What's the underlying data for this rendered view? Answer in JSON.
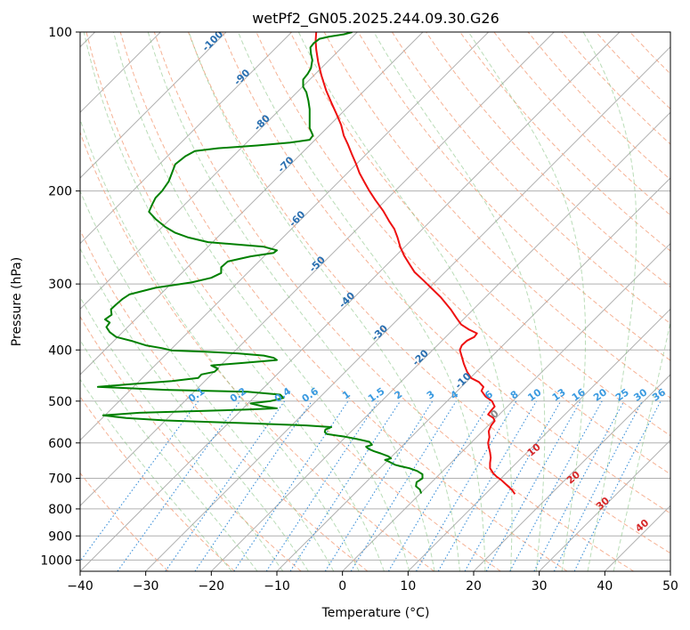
{
  "chart_data": {
    "type": "line",
    "title": "wetPf2_GN05.2025.244.09.30.G26",
    "xlabel": "Temperature (°C)",
    "ylabel": "Pressure (hPa)",
    "xlim": [
      -40,
      50
    ],
    "ylim": [
      1050,
      100
    ],
    "y_scale": "log",
    "grid": true,
    "x_ticks": [
      "−40",
      "−30",
      "−20",
      "−10",
      "0",
      "10",
      "20",
      "30",
      "40",
      "50"
    ],
    "x_tick_values": [
      -40,
      -30,
      -20,
      -10,
      0,
      10,
      20,
      30,
      40,
      50
    ],
    "y_ticks": [
      "100",
      "200",
      "300",
      "400",
      "500",
      "600",
      "700",
      "800",
      "900",
      "1000"
    ],
    "y_tick_values": [
      100,
      200,
      300,
      400,
      500,
      600,
      700,
      800,
      900,
      1000
    ],
    "isotherm_skew_labels": [
      "-100",
      "-90",
      "-80",
      "-70",
      "-60",
      "-50",
      "-40",
      "-30",
      "-20",
      "-10"
    ],
    "isotherm_skew_values": [
      -100,
      -90,
      -80,
      -70,
      -60,
      -50,
      -40,
      -30,
      -20,
      -10
    ],
    "isotherm_label_pressures": [
      105,
      123,
      150,
      180,
      228,
      278,
      325,
      375,
      418,
      462
    ],
    "mixing_ratio_labels": [
      "0.1",
      "0.2",
      "0.4",
      "0.6",
      "1",
      "1.5",
      "2",
      "3",
      "4",
      "6",
      "8",
      "10",
      "13",
      "16",
      "20",
      "25",
      "30",
      "36"
    ],
    "mixing_ratio_values": [
      0.1,
      0.2,
      0.4,
      0.6,
      1,
      1.5,
      2,
      3,
      4,
      6,
      8,
      10,
      13,
      16,
      20,
      25,
      30,
      36
    ],
    "dry_adiabat_labels": [
      "0",
      "10",
      "20",
      "30",
      "40"
    ],
    "dry_adiabat_label_positions": [
      [
        23.5,
        535
      ],
      [
        29.5,
        625
      ],
      [
        35.5,
        705
      ],
      [
        40.0,
        790
      ],
      [
        46.0,
        870
      ]
    ],
    "series": [
      {
        "name": "",
        "color": "#ee1111",
        "points": [
          [
            26.3,
            750
          ],
          [
            25.8,
            735
          ],
          [
            25,
            720
          ],
          [
            24.2,
            705
          ],
          [
            23.5,
            695
          ],
          [
            23,
            685
          ],
          [
            22.5,
            670
          ],
          [
            22.5,
            655
          ],
          [
            22.6,
            640
          ],
          [
            22.5,
            625
          ],
          [
            22.3,
            610
          ],
          [
            22.2,
            600
          ],
          [
            22.4,
            585
          ],
          [
            22.3,
            570
          ],
          [
            22.7,
            555
          ],
          [
            23.2,
            545
          ],
          [
            23.0,
            538
          ],
          [
            22.2,
            530
          ],
          [
            22.6,
            522
          ],
          [
            23.2,
            512
          ],
          [
            22.8,
            500
          ],
          [
            21.8,
            490
          ],
          [
            21.2,
            478
          ],
          [
            21.5,
            470
          ],
          [
            20.8,
            460
          ],
          [
            19.6,
            452
          ],
          [
            19,
            440
          ],
          [
            18.5,
            425
          ],
          [
            18.2,
            412
          ],
          [
            17.9,
            400
          ],
          [
            18.2,
            392
          ],
          [
            19.0,
            384
          ],
          [
            20.1,
            378
          ],
          [
            20.5,
            372
          ],
          [
            19.3,
            366
          ],
          [
            18.1,
            358
          ],
          [
            17.4,
            348
          ],
          [
            16.5,
            335
          ],
          [
            15,
            318
          ],
          [
            13.5,
            305
          ],
          [
            12.3,
            295
          ],
          [
            11,
            285
          ],
          [
            10.2,
            275
          ],
          [
            9.4,
            265
          ],
          [
            8.8,
            255
          ],
          [
            8.4,
            245
          ],
          [
            7.9,
            236
          ],
          [
            7.1,
            228
          ],
          [
            6.2,
            218
          ],
          [
            5.0,
            208
          ],
          [
            4.1,
            200
          ],
          [
            3.3,
            192
          ],
          [
            2.6,
            185
          ],
          [
            2.1,
            178
          ],
          [
            1.4,
            170
          ],
          [
            0.8,
            163
          ],
          [
            0.2,
            157
          ],
          [
            -0.2,
            150
          ],
          [
            -0.9,
            143
          ],
          [
            -1.7,
            136
          ],
          [
            -2.5,
            129
          ],
          [
            -3.2,
            121
          ],
          [
            -3.7,
            114
          ],
          [
            -4.0,
            108
          ],
          [
            -4.1,
            104
          ],
          [
            -4.0,
            100
          ]
        ]
      },
      {
        "name": "",
        "color": "#008000",
        "points": [
          [
            12,
            748
          ],
          [
            11.8,
            735
          ],
          [
            11.2,
            725
          ],
          [
            11.3,
            712
          ],
          [
            12.2,
            700
          ],
          [
            12.2,
            688
          ],
          [
            11.4,
            678
          ],
          [
            10.2,
            670
          ],
          [
            8.8,
            664
          ],
          [
            8.0,
            660
          ],
          [
            7.2,
            652
          ],
          [
            6.5,
            646
          ],
          [
            7.4,
            642
          ],
          [
            7.0,
            636
          ],
          [
            5.8,
            628
          ],
          [
            4.8,
            622
          ],
          [
            4.0,
            616
          ],
          [
            3.6,
            610
          ],
          [
            4.5,
            605
          ],
          [
            4.1,
            597
          ],
          [
            2.2,
            590
          ],
          [
            0.4,
            584
          ],
          [
            -2.4,
            577
          ],
          [
            -2.7,
            572
          ],
          [
            -2.6,
            566
          ],
          [
            -1.7,
            560
          ],
          [
            -5.5,
            556
          ],
          [
            -15.5,
            550
          ],
          [
            -27,
            544
          ],
          [
            -33,
            538
          ],
          [
            -36.5,
            532
          ],
          [
            -31,
            526
          ],
          [
            -15,
            519
          ],
          [
            -10,
            516
          ],
          [
            -12,
            512
          ],
          [
            -14,
            505
          ],
          [
            -11,
            500
          ],
          [
            -9,
            493
          ],
          [
            -9.5,
            486
          ],
          [
            -14.5,
            480
          ],
          [
            -27,
            476
          ],
          [
            -37.3,
            470
          ],
          [
            -33,
            465
          ],
          [
            -26,
            458
          ],
          [
            -22,
            452
          ],
          [
            -21.5,
            445
          ],
          [
            -19.5,
            440
          ],
          [
            -19,
            434
          ],
          [
            -20,
            428
          ],
          [
            -15,
            423
          ],
          [
            -10,
            418
          ],
          [
            -10.5,
            414
          ],
          [
            -12,
            410
          ],
          [
            -16,
            406
          ],
          [
            -21,
            403
          ],
          [
            -26,
            401
          ],
          [
            -27.5,
            397
          ],
          [
            -30,
            392
          ],
          [
            -32,
            385
          ],
          [
            -34.5,
            378
          ],
          [
            -35.5,
            370
          ],
          [
            -36,
            362
          ],
          [
            -35.5,
            355
          ],
          [
            -36.2,
            350
          ],
          [
            -35.2,
            343
          ],
          [
            -35.3,
            335
          ],
          [
            -34.5,
            328
          ],
          [
            -33.5,
            320
          ],
          [
            -32.5,
            314
          ],
          [
            -28.5,
            305
          ],
          [
            -23,
            298
          ],
          [
            -20,
            292
          ],
          [
            -18.5,
            286
          ],
          [
            -18.5,
            279
          ],
          [
            -17.5,
            272
          ],
          [
            -14,
            266
          ],
          [
            -10.5,
            262
          ],
          [
            -10,
            259
          ],
          [
            -12,
            255
          ],
          [
            -20.5,
            250
          ],
          [
            -23.5,
            245
          ],
          [
            -25.5,
            240
          ],
          [
            -27,
            234
          ],
          [
            -28.5,
            226
          ],
          [
            -29.5,
            219
          ],
          [
            -29,
            212
          ],
          [
            -28.5,
            206
          ],
          [
            -27.5,
            200
          ],
          [
            -26.5,
            192
          ],
          [
            -26,
            185
          ],
          [
            -25.5,
            178
          ],
          [
            -24,
            172
          ],
          [
            -22.5,
            168
          ],
          [
            -19,
            166
          ],
          [
            -13,
            164
          ],
          [
            -8,
            162
          ],
          [
            -5,
            160
          ],
          [
            -4.5,
            157
          ],
          [
            -5,
            152
          ],
          [
            -5,
            145
          ],
          [
            -5,
            140
          ],
          [
            -5.2,
            135
          ],
          [
            -5.5,
            130
          ],
          [
            -6.0,
            127
          ],
          [
            -6.0,
            123
          ],
          [
            -5.3,
            120
          ],
          [
            -4.8,
            117
          ],
          [
            -4.6,
            113
          ],
          [
            -4.8,
            110
          ],
          [
            -4.9,
            107
          ],
          [
            -4.4,
            105
          ],
          [
            -3.5,
            103
          ],
          [
            -2.0,
            102
          ],
          [
            0.2,
            101
          ],
          [
            1.5,
            100
          ]
        ]
      }
    ]
  }
}
